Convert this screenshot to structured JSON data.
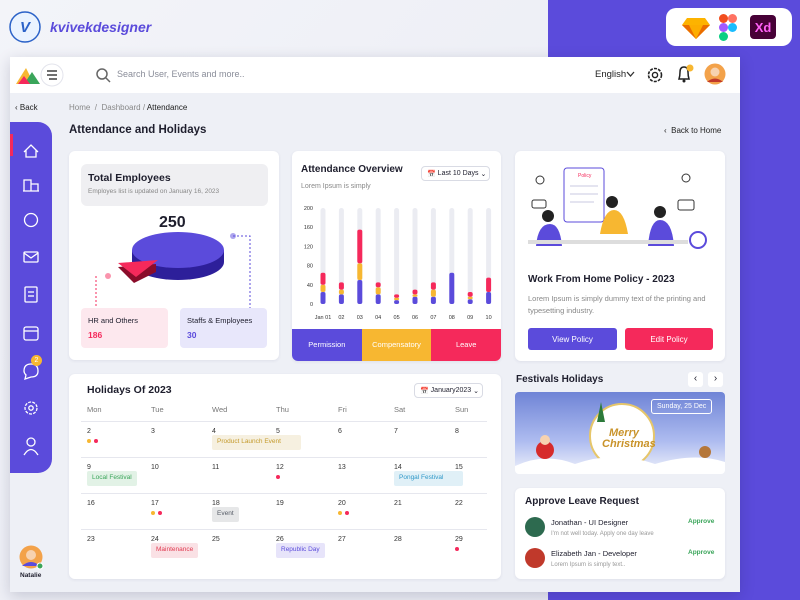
{
  "brand": "kvivekdesigner",
  "tools": {
    "xd": "Xd"
  },
  "topbar": {
    "search_placeholder": "Search User, Events and more..",
    "language": "English"
  },
  "nav": {
    "back": "Back",
    "breadcrumb": [
      "Home",
      "Dashboard",
      "Attendance"
    ],
    "page_title": "Attendance and Holidays",
    "back_home": "Back to Home",
    "message_badge": "2",
    "user": "Natalie"
  },
  "employees": {
    "title": "Total Employees",
    "subtitle": "Employes list is updated on January 16, 2023",
    "total": 250,
    "groups": [
      {
        "name": "HR and Others",
        "count": 186,
        "color": "#f5295b"
      },
      {
        "name": "Staffs & Employees",
        "count": 30,
        "color": "#5b4bdb"
      }
    ]
  },
  "chart_data": {
    "type": "stacked_bar",
    "title": "Attendance Overview",
    "subtitle": "Lorem Ipsum is simply",
    "range": "Last 10 Days",
    "categories": [
      "Jan 01",
      "02",
      "03",
      "04",
      "05",
      "06",
      "07",
      "08",
      "09",
      "10"
    ],
    "series": [
      {
        "name": "Permission",
        "color": "#5b4bdb",
        "values": [
          25,
          20,
          50,
          20,
          8,
          15,
          15,
          65,
          10,
          25
        ]
      },
      {
        "name": "Compensatory",
        "color": "#f7b731",
        "values": [
          15,
          10,
          35,
          15,
          5,
          5,
          15,
          0,
          5,
          0
        ]
      },
      {
        "name": "Leave",
        "color": "#f5295b",
        "values": [
          25,
          15,
          70,
          10,
          7,
          10,
          15,
          0,
          10,
          30
        ]
      }
    ],
    "ylim": [
      0,
      200
    ],
    "yticks": [
      0,
      40,
      80,
      120,
      160,
      200
    ]
  },
  "policy": {
    "illustration_label": "Policy",
    "title": "Work From Home Policy - 2023",
    "text": "Lorem Ipsum is simply dummy text of the printing and typesetting industry.",
    "view": "View Policy",
    "edit": "Edit Policy"
  },
  "calendar": {
    "title": "Holidays Of 2023",
    "month": "January2023",
    "weekdays": [
      "Mon",
      "Tue",
      "Wed",
      "Thu",
      "Fri",
      "Sat",
      "Sun"
    ],
    "weeks": [
      [
        {
          "day": 2,
          "dots": [
            "#f7b731",
            "#f5295b"
          ]
        },
        {
          "day": 3
        },
        {
          "day": 4,
          "event": "Product Launch Event",
          "color": "#c49a2c"
        },
        {
          "day": 5
        },
        {
          "day": 6
        },
        {
          "day": 7
        },
        {
          "day": 8
        }
      ],
      [
        {
          "day": 9,
          "event": "Local Festival",
          "color": "#3aa55a"
        },
        {
          "day": 10
        },
        {
          "day": 11
        },
        {
          "day": 12,
          "dots": [
            "#f5295b"
          ]
        },
        {
          "day": 13
        },
        {
          "day": 14,
          "event": "Pongal Festival",
          "color": "#2f98c8"
        },
        {
          "day": 15
        }
      ],
      [
        {
          "day": 16
        },
        {
          "day": 17,
          "dots": [
            "#f7b731",
            "#f5295b"
          ]
        },
        {
          "day": 18,
          "event": "Event",
          "color": "#555b66"
        },
        {
          "day": 19
        },
        {
          "day": 20,
          "dots": [
            "#f7b731",
            "#f5295b"
          ]
        },
        {
          "day": 21
        },
        {
          "day": 22
        }
      ],
      [
        {
          "day": 23
        },
        {
          "day": 24,
          "event": "Maintenance",
          "color": "#e0384f"
        },
        {
          "day": 25
        },
        {
          "day": 26,
          "event": "Republic Day",
          "color": "#5b4bdb"
        },
        {
          "day": 27
        },
        {
          "day": 28
        },
        {
          "day": 29,
          "dots": [
            "#f5295b"
          ]
        }
      ]
    ]
  },
  "festivals": {
    "title": "Festivals Holidays",
    "date": "Sunday, 25 Dec",
    "greeting": "Merry Christmas"
  },
  "leave_requests": {
    "title": "Approve Leave Request",
    "items": [
      {
        "name": "Jonathan - UI Designer",
        "note": "I'm not well today. Apply one day leave",
        "action": "Approve"
      },
      {
        "name": "Elizabeth Jan - Developer",
        "note": "Lorem Ipsum is simply text..",
        "action": "Approve"
      }
    ]
  }
}
